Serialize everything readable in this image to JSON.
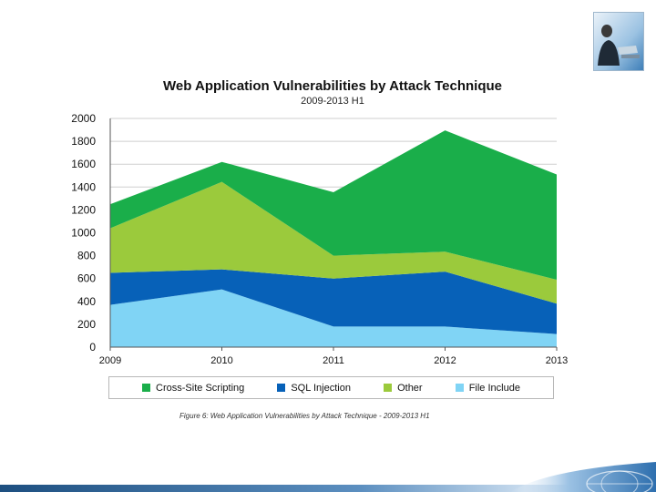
{
  "chart_data": {
    "type": "area",
    "stacked": true,
    "title": "Web Application Vulnerabilities by Attack Technique",
    "subtitle": "2009-2013 H1",
    "categories": [
      "2009",
      "2010",
      "2011",
      "2012",
      "2013"
    ],
    "ylim": [
      0,
      2000
    ],
    "yticks": [
      0,
      200,
      400,
      600,
      800,
      1000,
      1200,
      1400,
      1600,
      1800,
      2000
    ],
    "grid": true,
    "legend_position": "bottom",
    "series": [
      {
        "name": "File Include",
        "color": "#80d4f5",
        "values": [
          370,
          505,
          180,
          180,
          115
        ]
      },
      {
        "name": "SQL Injection",
        "color": "#0761b8",
        "values": [
          280,
          175,
          420,
          480,
          265
        ]
      },
      {
        "name": "Other",
        "color": "#9bca3c",
        "values": [
          390,
          765,
          200,
          175,
          210
        ]
      },
      {
        "name": "Cross-Site Scripting",
        "color": "#1aae4a",
        "values": [
          210,
          175,
          555,
          1060,
          920
        ]
      }
    ],
    "legend_order": [
      "Cross-Site Scripting",
      "SQL Injection",
      "Other",
      "File Include"
    ]
  },
  "caption": "Figure 6: Web Application Vulnerabilities by Attack Technique - 2009-2013 H1",
  "legend": [
    {
      "label": "Cross-Site Scripting",
      "color": "#1aae4a"
    },
    {
      "label": "SQL Injection",
      "color": "#0761b8"
    },
    {
      "label": "Other",
      "color": "#9bca3c"
    },
    {
      "label": "File Include",
      "color": "#80d4f5"
    }
  ]
}
